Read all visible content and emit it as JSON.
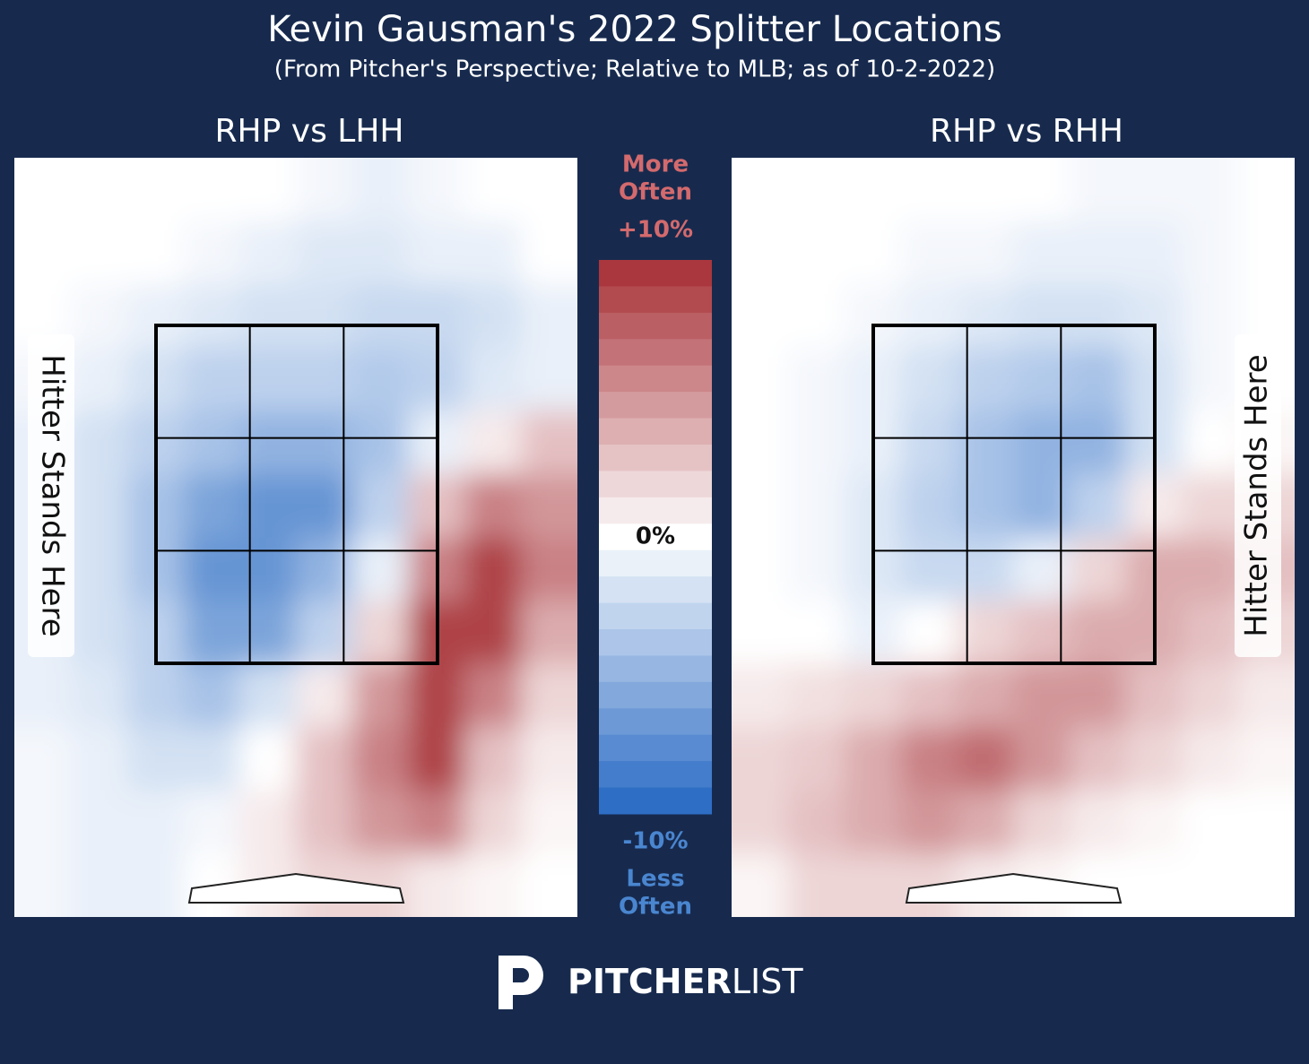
{
  "title": "Kevin Gausman's 2022 Splitter Locations",
  "subtitle": "(From Pitcher's Perspective; Relative to MLB; as of 10-2-2022)",
  "chart_data": [
    {
      "type": "heatmap",
      "title": "RHP vs LHH",
      "annotation": "Hitter Stands Here",
      "annotation_side": "left",
      "values": [
        [
          0,
          0,
          0,
          0,
          0,
          -0.5,
          -1,
          -0.5,
          0,
          0
        ],
        [
          0,
          0,
          0,
          -0.5,
          -1,
          -1.5,
          -1.5,
          -1,
          -1,
          0
        ],
        [
          0,
          -0.5,
          -1,
          -1.5,
          -2,
          -2,
          -2.5,
          -2.5,
          -2,
          -1
        ],
        [
          -0.5,
          -1,
          -2,
          -3,
          -3,
          -3,
          -3.5,
          -3,
          -1.5,
          -1
        ],
        [
          -1,
          -2,
          -3,
          -4,
          -5,
          -5,
          -4,
          -1,
          1,
          3
        ],
        [
          -1,
          -2,
          -4,
          -6,
          -7,
          -7,
          -3,
          3,
          6,
          5
        ],
        [
          -1,
          -2,
          -4,
          -7,
          -7,
          -5,
          -1,
          6,
          9,
          6
        ],
        [
          -1,
          -2,
          -3,
          -6,
          -6,
          -3,
          2,
          9,
          9,
          4
        ],
        [
          -1,
          -1.5,
          -3,
          -4,
          -2,
          1,
          5,
          9,
          6,
          2
        ],
        [
          -0.5,
          -1,
          -2,
          -2,
          0,
          3,
          6,
          9,
          3,
          1
        ],
        [
          -0.5,
          -1,
          -1,
          -0.5,
          1,
          3,
          5,
          6,
          2,
          0.5
        ],
        [
          -0.5,
          -1,
          -1,
          0,
          1,
          2,
          2,
          1,
          0.5,
          0
        ]
      ]
    },
    {
      "type": "heatmap",
      "title": "RHP vs RHH",
      "annotation": "Hitter Stands Here",
      "annotation_side": "right",
      "values": [
        [
          0,
          0,
          0,
          0,
          0,
          0,
          -0.5,
          -0.5,
          -0.5,
          0
        ],
        [
          0,
          0,
          0,
          -0.5,
          -0.5,
          -1,
          -1,
          -1,
          -0.5,
          0
        ],
        [
          0,
          0,
          -0.5,
          -1,
          -1.5,
          -2,
          -2,
          -1.5,
          -0.5,
          0
        ],
        [
          0,
          -0.5,
          -1,
          -2,
          -3,
          -3.5,
          -4,
          -2,
          -0.5,
          0
        ],
        [
          0,
          -0.5,
          -1,
          -2.5,
          -4,
          -5,
          -5,
          -2,
          0,
          0.5
        ],
        [
          0,
          -0.5,
          -1.5,
          -3,
          -4,
          -5,
          -3,
          1,
          2,
          2
        ],
        [
          0,
          -0.5,
          -1.5,
          -2.5,
          -2.5,
          -1,
          2,
          4,
          4,
          3
        ],
        [
          0,
          0,
          -1,
          0,
          2,
          3,
          4,
          4,
          3,
          2
        ],
        [
          1,
          1.5,
          2,
          3,
          4,
          5,
          5,
          3,
          2,
          1
        ],
        [
          2,
          2.5,
          4,
          6,
          7,
          5,
          3,
          2,
          1,
          0.5
        ],
        [
          2,
          3,
          4,
          5,
          4,
          2,
          1,
          0.5,
          0,
          0
        ],
        [
          0.5,
          2,
          2,
          2,
          1,
          0.5,
          0,
          0,
          0,
          0
        ]
      ]
    }
  ],
  "colorbar": {
    "zlim": [
      -10,
      10
    ],
    "colors": {
      "low": "#2467c2",
      "mid": "#ffffff",
      "high": "#a52d33"
    },
    "top_label": [
      "More",
      "Often"
    ],
    "bottom_label": [
      "Less",
      "Often"
    ],
    "ticks": [
      {
        "value": 10,
        "label": "+10%"
      },
      {
        "value": 0,
        "label": "0%"
      },
      {
        "value": -10,
        "label": "-10%"
      }
    ]
  },
  "logo": {
    "bold": "PITCHER",
    "light": "LIST"
  }
}
